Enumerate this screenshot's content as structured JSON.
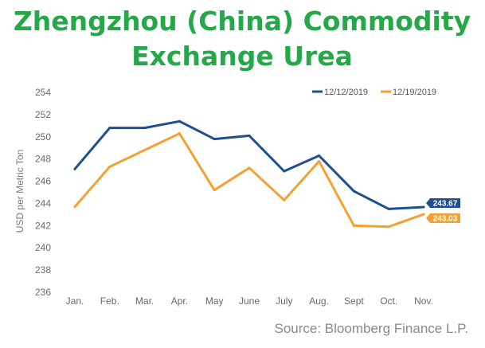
{
  "title_lines": [
    "Zhengzhou (China) Commodity",
    "Exchange Urea"
  ],
  "source": "Source: Bloomberg Finance L.P.",
  "colors": {
    "title": "#26a84a",
    "series1": "#1d4f91",
    "series2": "#f5a033"
  },
  "chart_data": {
    "type": "line",
    "title": "Zhengzhou (China) Commodity Exchange Urea",
    "xlabel": "",
    "ylabel": "USD per Metric Ton",
    "categories": [
      "Jan.",
      "Feb.",
      "Mar.",
      "Apr.",
      "May",
      "June",
      "July",
      "Aug.",
      "Sept",
      "Oct.",
      "Nov."
    ],
    "ylim": [
      236,
      254
    ],
    "yticks": [
      236,
      238,
      240,
      242,
      244,
      246,
      248,
      250,
      252,
      254
    ],
    "grid": false,
    "legend_position": "top-right",
    "series": [
      {
        "name": "12/12/2019",
        "color": "#1d4f91",
        "values": [
          247.1,
          250.8,
          250.8,
          251.4,
          249.8,
          250.1,
          246.9,
          248.3,
          245.1,
          243.5,
          243.67
        ],
        "end_label": "243.67"
      },
      {
        "name": "12/19/2019",
        "color": "#f5a033",
        "values": [
          243.7,
          247.3,
          248.8,
          250.3,
          245.2,
          247.2,
          244.3,
          247.8,
          242.0,
          241.9,
          243.03
        ],
        "end_label": "243.03"
      }
    ]
  }
}
